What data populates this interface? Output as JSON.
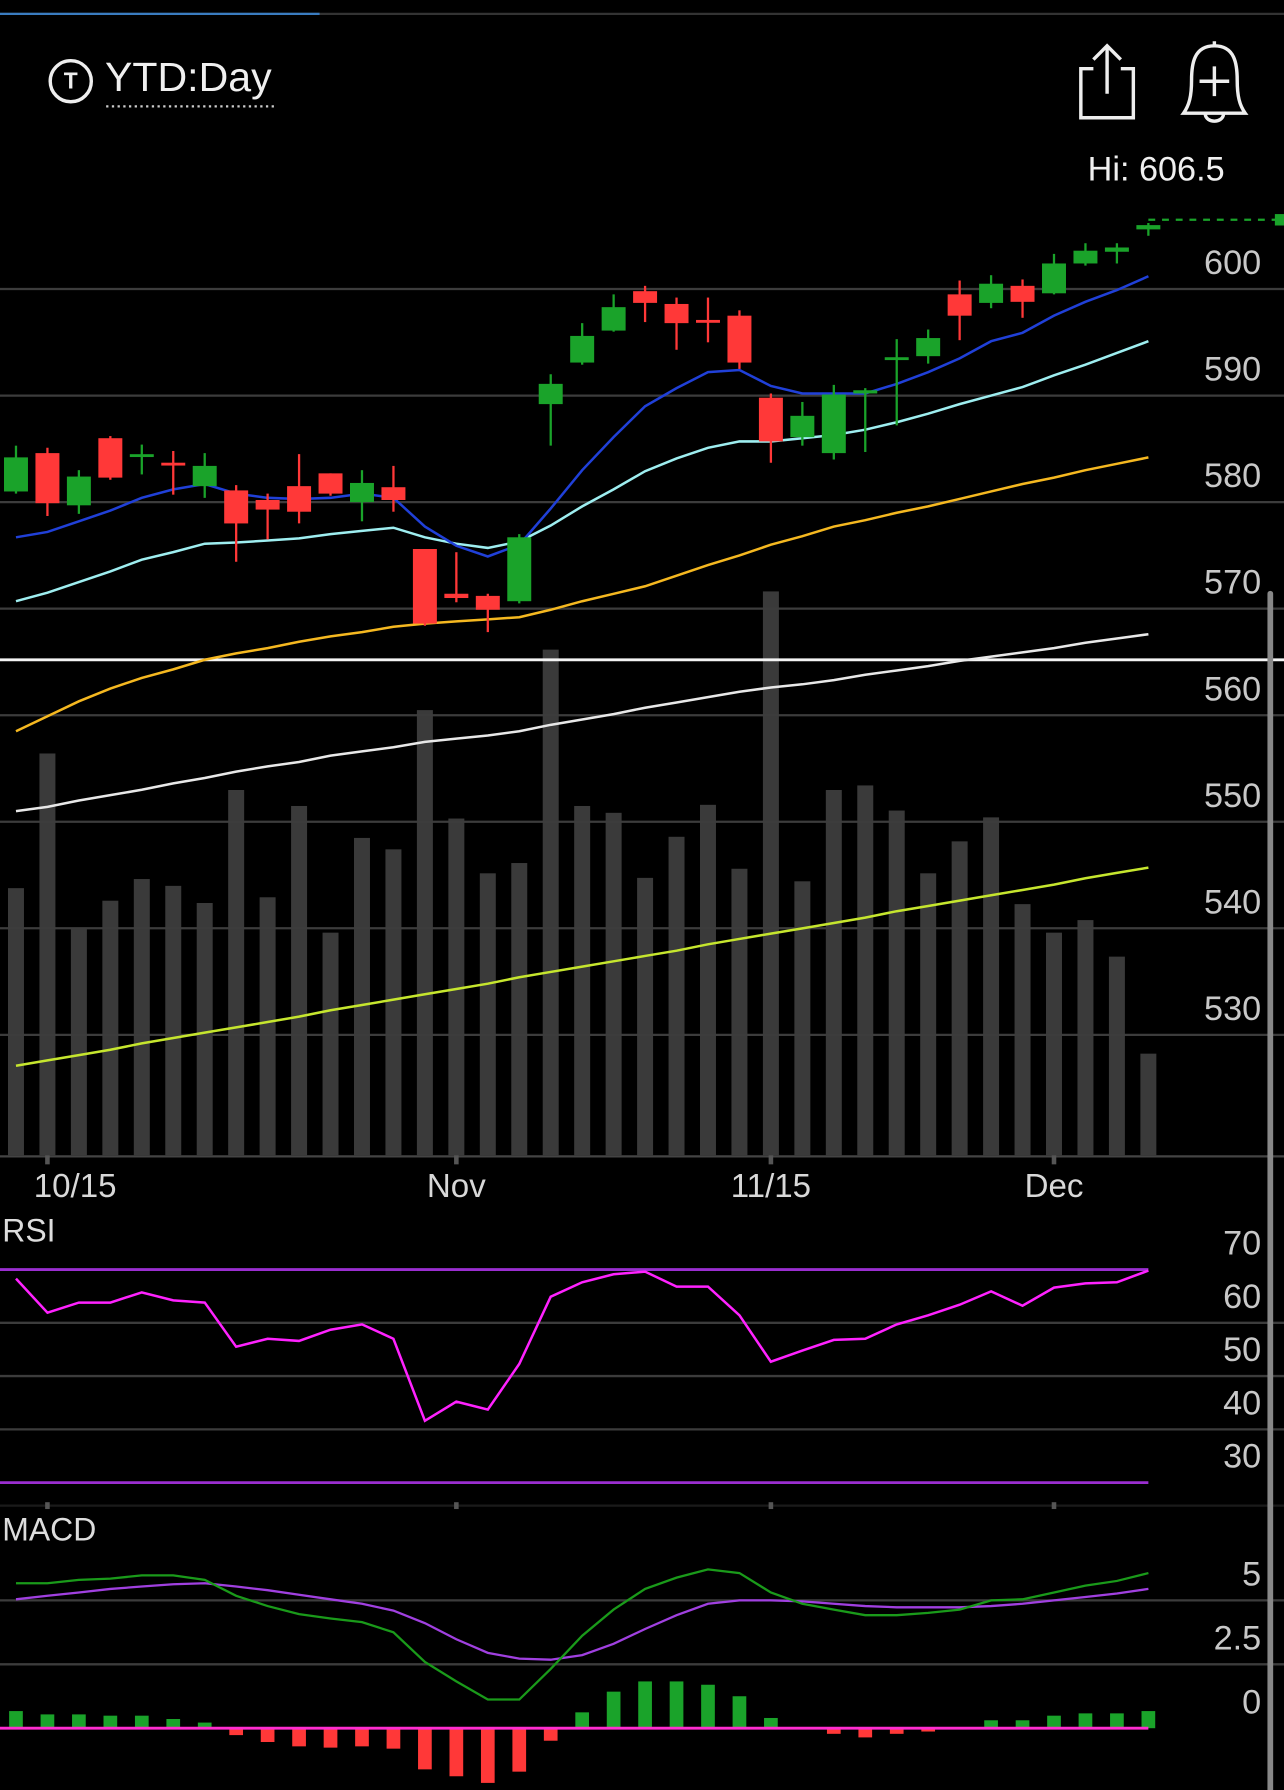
{
  "header": {
    "title": "YTD:Day"
  },
  "chart_data": [
    {
      "type": "candlestick",
      "categories": [
        null,
        "10/15",
        null,
        null,
        null,
        null,
        null,
        null,
        null,
        null,
        null,
        null,
        null,
        null,
        "Nov",
        null,
        null,
        null,
        null,
        null,
        null,
        null,
        null,
        null,
        "11/15",
        null,
        null,
        null,
        null,
        null,
        null,
        null,
        null,
        "Dec",
        null,
        null,
        null
      ],
      "open": [
        581.0,
        584.6,
        579.7,
        586.0,
        584.4,
        583.7,
        581.5,
        581.1,
        580.2,
        581.5,
        582.7,
        580.0,
        581.4,
        575.6,
        571.4,
        571.2,
        570.7,
        589.2,
        593.1,
        596.1,
        599.8,
        598.6,
        597.1,
        597.5,
        589.8,
        586.1,
        584.6,
        590.2,
        593.4,
        593.7,
        599.5,
        598.7,
        600.3,
        599.6,
        602.4,
        603.5,
        605.6
      ],
      "high": [
        585.3,
        585.1,
        583.0,
        586.2,
        585.4,
        584.8,
        584.6,
        581.6,
        580.8,
        584.5,
        582.7,
        583.0,
        583.4,
        575.6,
        575.3,
        571.4,
        577.0,
        592.0,
        596.8,
        599.5,
        600.3,
        599.2,
        599.2,
        598.0,
        590.2,
        589.4,
        591.0,
        590.7,
        595.3,
        596.2,
        600.8,
        601.3,
        600.9,
        603.3,
        604.3,
        604.3,
        606.2
      ],
      "low": [
        580.8,
        578.7,
        578.9,
        582.1,
        582.6,
        580.7,
        580.4,
        574.4,
        576.5,
        578.0,
        580.6,
        578.2,
        579.1,
        568.4,
        570.6,
        567.8,
        570.5,
        585.3,
        592.9,
        596.0,
        596.9,
        594.3,
        595.0,
        592.5,
        583.7,
        585.3,
        584.0,
        584.7,
        587.2,
        593.0,
        595.2,
        598.2,
        597.3,
        599.5,
        602.2,
        602.4,
        605.0
      ],
      "close": [
        584.2,
        579.9,
        582.4,
        582.3,
        584.5,
        583.5,
        583.4,
        578.0,
        579.3,
        579.1,
        580.8,
        581.8,
        580.2,
        568.6,
        571.0,
        569.9,
        576.7,
        591.1,
        595.6,
        598.3,
        598.7,
        596.8,
        596.9,
        593.1,
        585.7,
        588.1,
        590.1,
        590.5,
        593.6,
        595.4,
        597.5,
        600.5,
        598.8,
        602.4,
        603.6,
        603.9,
        606.0
      ],
      "up_color": "#1aa32a",
      "down_color": "#ff3838",
      "overlays": [
        {
          "color": "#c6e62e",
          "values": [
            527.1,
            527.6,
            528.1,
            528.6,
            529.2,
            529.7,
            530.2,
            530.7,
            531.2,
            531.7,
            532.3,
            532.8,
            533.3,
            533.8,
            534.3,
            534.8,
            535.4,
            535.9,
            536.4,
            536.9,
            537.4,
            537.9,
            538.5,
            539.0,
            539.5,
            540.0,
            540.5,
            541.0,
            541.6,
            542.1,
            542.6,
            543.1,
            543.6,
            544.1,
            544.7,
            545.2,
            545.7
          ]
        },
        {
          "color": "#e8e8e8",
          "values": [
            551.0,
            551.4,
            552.0,
            552.5,
            553.0,
            553.6,
            554.1,
            554.7,
            555.2,
            555.6,
            556.2,
            556.6,
            557.0,
            557.5,
            557.8,
            558.1,
            558.5,
            559.1,
            559.6,
            560.1,
            560.7,
            561.2,
            561.7,
            562.2,
            562.6,
            562.9,
            563.3,
            563.8,
            564.2,
            564.6,
            565.1,
            565.5,
            565.9,
            566.3,
            566.8,
            567.2,
            567.6
          ]
        },
        {
          "color": "#f5b820",
          "values": [
            558.5,
            559.9,
            561.3,
            562.5,
            563.5,
            564.3,
            565.2,
            565.8,
            566.3,
            566.9,
            567.4,
            567.8,
            568.3,
            568.6,
            568.8,
            569.0,
            569.2,
            569.9,
            570.7,
            571.4,
            572.1,
            573.1,
            574.1,
            575.0,
            576.0,
            576.8,
            577.7,
            578.3,
            579.0,
            579.6,
            580.3,
            581.0,
            581.7,
            582.3,
            583.0,
            583.6,
            584.2
          ]
        },
        {
          "color": "#9eeef0",
          "values": [
            570.7,
            571.5,
            572.5,
            573.5,
            574.6,
            575.3,
            576.1,
            576.2,
            576.4,
            576.6,
            577.0,
            577.3,
            577.6,
            576.7,
            576.1,
            575.7,
            576.3,
            577.8,
            579.6,
            581.2,
            582.9,
            584.1,
            585.1,
            585.7,
            585.7,
            586.0,
            586.3,
            586.8,
            587.5,
            588.3,
            589.2,
            590.0,
            590.8,
            591.9,
            592.9,
            594.0,
            595.1
          ]
        },
        {
          "color": "#2040d8",
          "values": [
            576.7,
            577.2,
            578.2,
            579.2,
            580.4,
            581.2,
            581.7,
            580.8,
            580.4,
            580.3,
            580.4,
            580.8,
            580.4,
            577.7,
            575.9,
            574.9,
            576.0,
            579.4,
            583.0,
            586.1,
            589.0,
            590.7,
            592.2,
            592.4,
            590.9,
            590.2,
            590.2,
            590.2,
            591.1,
            592.2,
            593.5,
            595.1,
            595.9,
            597.5,
            598.8,
            599.9,
            601.2
          ]
        }
      ],
      "volume": {
        "color": "#3a3a3a",
        "ylim": [
          0,
          600
        ],
        "values": [
          234,
          352,
          199,
          223,
          242,
          236,
          221,
          320,
          226,
          306,
          195,
          278,
          268,
          390,
          295,
          247,
          256,
          443,
          306,
          300,
          243,
          279,
          307,
          251,
          494,
          240,
          320,
          324,
          302,
          247,
          275,
          296,
          220,
          195,
          206,
          174,
          89
        ]
      },
      "reference_line": 565.2,
      "annotation": {
        "label": "Hi: 606.5",
        "value": 606.5
      },
      "ylim": [
        518.7,
        608.9
      ],
      "yticks": [
        600,
        590,
        580,
        570,
        560,
        550,
        540,
        530
      ],
      "grid": true
    },
    {
      "type": "line",
      "title": "RSI",
      "color": "#ff22ff",
      "values": [
        68.3,
        61.9,
        63.8,
        63.8,
        65.7,
        64.2,
        63.8,
        55.5,
        57.0,
        56.6,
        58.7,
        59.7,
        57.0,
        41.6,
        45.2,
        43.7,
        52.3,
        64.9,
        67.6,
        69.1,
        69.6,
        66.8,
        66.8,
        61.4,
        52.7,
        54.8,
        56.8,
        57.0,
        59.7,
        61.4,
        63.4,
        65.9,
        63.2,
        66.6,
        67.4,
        67.6,
        69.8
      ],
      "levels": [
        70,
        30
      ],
      "level_color": "#9a2ed0",
      "ylim": [
        25.9,
        80.1
      ],
      "yticks": [
        70,
        60,
        50,
        40,
        30
      ],
      "grid": true
    },
    {
      "type": "macd",
      "title": "MACD",
      "macd": {
        "color": "#1a9a1a",
        "values": [
          5.67,
          5.67,
          5.8,
          5.85,
          5.98,
          5.98,
          5.8,
          5.18,
          4.78,
          4.46,
          4.29,
          4.15,
          3.75,
          2.59,
          1.83,
          1.12,
          1.12,
          2.32,
          3.62,
          4.64,
          5.45,
          5.89,
          6.21,
          6.07,
          5.31,
          4.87,
          4.64,
          4.42,
          4.42,
          4.51,
          4.64,
          5.0,
          5.04,
          5.31,
          5.58,
          5.76,
          6.07
        ]
      },
      "signal": {
        "color": "#a040e0",
        "values": [
          5.04,
          5.18,
          5.31,
          5.45,
          5.54,
          5.63,
          5.67,
          5.54,
          5.4,
          5.22,
          5.04,
          4.87,
          4.6,
          4.11,
          3.48,
          2.95,
          2.72,
          2.68,
          2.86,
          3.3,
          3.88,
          4.42,
          4.87,
          5.0,
          5.0,
          4.96,
          4.87,
          4.78,
          4.73,
          4.73,
          4.73,
          4.78,
          4.87,
          5.0,
          5.13,
          5.27,
          5.45
        ]
      },
      "histogram": {
        "up_color": "#1aa32a",
        "down_color": "#ff3838",
        "values": [
          0.67,
          0.54,
          0.54,
          0.49,
          0.49,
          0.36,
          0.22,
          -0.27,
          -0.54,
          -0.71,
          -0.76,
          -0.71,
          -0.8,
          -1.61,
          -1.88,
          -2.14,
          -1.7,
          -0.49,
          0.62,
          1.43,
          1.83,
          1.83,
          1.7,
          1.25,
          0.4,
          0,
          -0.22,
          -0.36,
          -0.22,
          -0.13,
          0,
          0.31,
          0.31,
          0.49,
          0.58,
          0.58,
          0.67
        ]
      },
      "zero_color": "#ff2dd0",
      "ylim": [
        -2.41,
        8.44
      ],
      "yticks": [
        5,
        {
          "value": 2.5,
          "label": "2.5"
        },
        0
      ],
      "grid": true
    }
  ]
}
